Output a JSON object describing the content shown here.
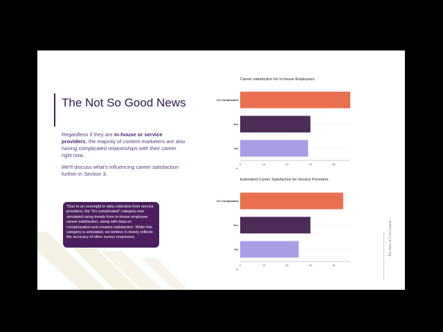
{
  "slide": {
    "title": "The Not So Good News",
    "body_pre": "Regardless if they are ",
    "body_bold": "in-house or service providers",
    "body_post": ", the majority of content marketers are also having complicated relationships with their career right now.",
    "body_p2": "We'll discuss what's influencing career satisfaction further in Section 3.",
    "callout": "\"Due to an oversight in data collection from service providers, the \"it's complicated\" category was simulated using trends from in-house employee career satisfaction, along with data on compensation and creative satisfaction. While this category is simulated, we believe it closely reflects the accuracy of other survey responses.",
    "side_brand": "The State of CivicContent"
  },
  "colors": {
    "orange": "#e8704f",
    "purple": "#4c2b57",
    "lavender": "#a79ee6",
    "grid": "#e4e4e4"
  },
  "chart_data": [
    {
      "type": "bar",
      "orientation": "horizontal",
      "title": "Career satisfaction for In-house Employees",
      "categories": [
        "It's Complicated",
        "Yes",
        "No"
      ],
      "values": [
        47,
        30,
        29
      ],
      "xlim": [
        0,
        47
      ],
      "xticks": [
        "0",
        "10",
        "20",
        "30",
        "40"
      ],
      "xtick_values": [
        0,
        10,
        20,
        30,
        40
      ],
      "xaxis_suffix": "%",
      "grid": true
    },
    {
      "type": "bar",
      "orientation": "horizontal",
      "title": "Estimated Career Satisfaction for Service Providers",
      "categories": [
        "It's Complicated",
        "Yes",
        "No"
      ],
      "values": [
        44,
        30,
        25
      ],
      "xlim": [
        0,
        47
      ],
      "xticks": [
        "0",
        "10",
        "20",
        "30",
        "40"
      ],
      "xtick_values": [
        0,
        10,
        20,
        30,
        40
      ],
      "xaxis_suffix": "%",
      "grid": true
    }
  ]
}
